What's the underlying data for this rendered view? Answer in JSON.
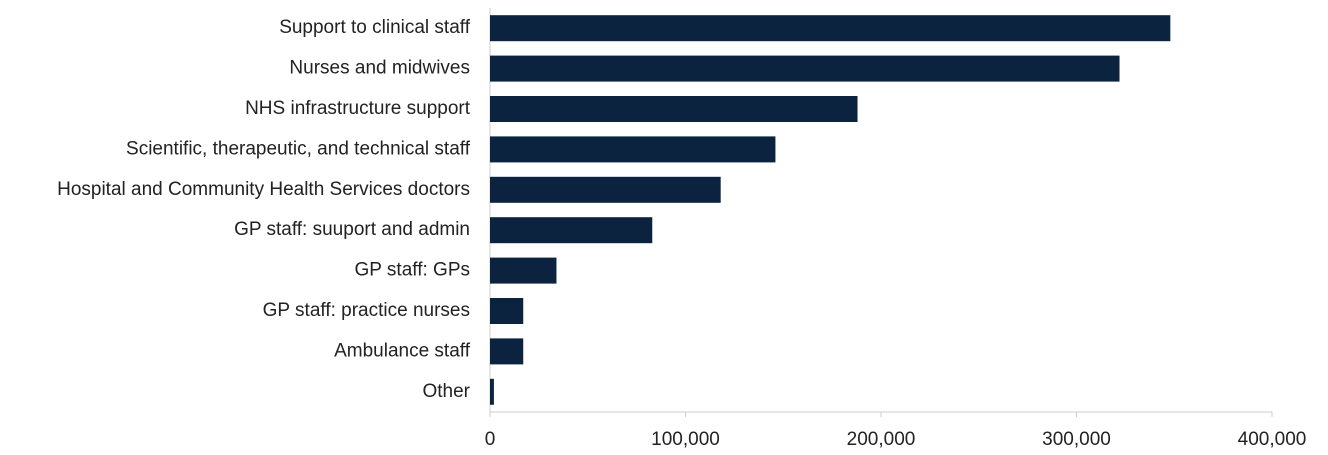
{
  "chart_data": {
    "type": "bar",
    "orientation": "horizontal",
    "categories": [
      "Support to clinical staff",
      "Nurses and midwives",
      "NHS infrastructure support",
      "Scientific, therapeutic, and technical staff",
      "Hospital and Community Health Services doctors",
      "GP staff: suuport and admin",
      "GP staff: GPs",
      "GP staff: practice nurses",
      "Ambulance staff",
      "Other"
    ],
    "values": [
      348000,
      322000,
      188000,
      146000,
      118000,
      83000,
      34000,
      17000,
      17000,
      2000
    ],
    "color": "#0c2340",
    "xlim": [
      0,
      400000
    ],
    "xticks": [
      0,
      {
        "value": 100000,
        "label": "100,000"
      },
      {
        "value": 200000,
        "label": "200,000"
      },
      {
        "value": 300000,
        "label": "300,000"
      },
      {
        "value": 400000,
        "label": "400,000"
      }
    ],
    "grid": false
  }
}
